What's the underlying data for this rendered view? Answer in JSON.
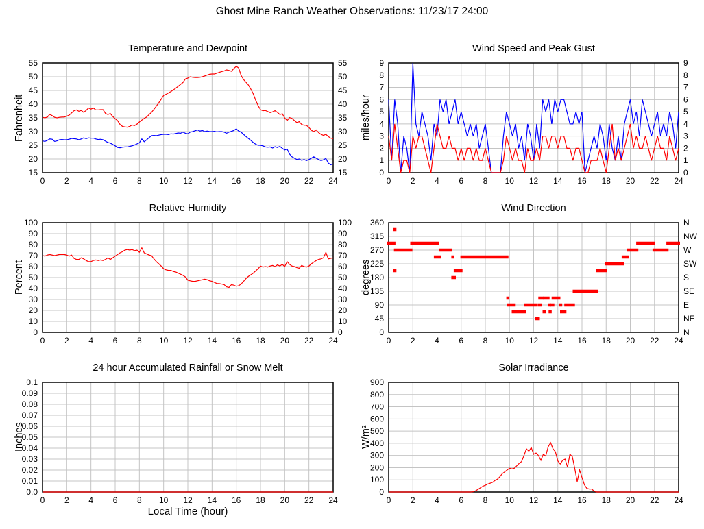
{
  "page_title": "Ghost Mine Ranch Weather Observations: 11/23/17 24:00",
  "colors": {
    "grid": "#c4c4c4",
    "border": "#000000",
    "red": "#ff0000",
    "blue": "#0000ff",
    "background": "#ffffff"
  },
  "chart_data": [
    {
      "id": "temperature-dewpoint",
      "type": "line",
      "title": "Temperature and Dewpoint",
      "ylabel": "Fahrenheit",
      "xlim": [
        0,
        24
      ],
      "ylim": [
        15,
        55
      ],
      "xticks": [
        0,
        2,
        4,
        6,
        8,
        10,
        12,
        14,
        16,
        18,
        20,
        22,
        24
      ],
      "yticks": [
        15,
        20,
        25,
        30,
        35,
        40,
        45,
        50,
        55
      ],
      "right": "mirror",
      "series": [
        {
          "name": "Temperature",
          "color": "#ff0000",
          "x0": 0,
          "step": 0.2,
          "y": [
            35.2,
            35.0,
            35.3,
            36.3,
            35.8,
            35.2,
            35.0,
            35.2,
            35.3,
            35.3,
            35.6,
            36.0,
            36.8,
            37.6,
            37.9,
            37.4,
            37.7,
            37.0,
            37.7,
            38.6,
            38.2,
            38.6,
            37.9,
            37.9,
            38.0,
            38.0,
            36.6,
            36.2,
            36.6,
            35.5,
            34.7,
            34.0,
            32.6,
            31.9,
            31.7,
            31.6,
            31.9,
            32.4,
            32.2,
            32.7,
            33.5,
            34.2,
            34.8,
            35.3,
            36.2,
            37.0,
            38.1,
            39.3,
            40.5,
            41.8,
            43.2,
            43.6,
            44.1,
            44.6,
            45.2,
            45.8,
            46.5,
            47.2,
            47.9,
            49.2,
            49.5,
            50.0,
            49.8,
            49.7,
            49.7,
            49.8,
            50.0,
            50.3,
            50.6,
            50.9,
            51.0,
            51.0,
            51.3,
            51.6,
            51.9,
            52.1,
            52.5,
            52.3,
            52.0,
            53.0,
            53.8,
            53.2,
            50.5,
            49.0,
            48.0,
            47.0,
            45.5,
            43.8,
            41.5,
            39.5,
            38.0,
            37.6,
            37.7,
            37.3,
            36.9,
            37.2,
            37.6,
            37.0,
            36.2,
            36.5,
            35.0,
            34.0,
            35.1,
            34.8,
            34.0,
            33.3,
            33.6,
            32.6,
            32.3,
            32.3,
            31.5,
            30.5,
            30.0,
            30.6,
            29.6,
            29.0,
            28.6,
            29.0,
            28.2,
            27.6,
            27.4
          ]
        },
        {
          "name": "Dewpoint",
          "color": "#0000ff",
          "x0": 0,
          "step": 0.2,
          "y": [
            26.6,
            26.4,
            26.8,
            27.3,
            27.2,
            26.4,
            26.6,
            27.0,
            27.1,
            27.0,
            27.0,
            27.2,
            27.5,
            27.4,
            27.3,
            27.0,
            27.3,
            27.7,
            27.4,
            27.7,
            27.6,
            27.6,
            27.3,
            27.1,
            27.2,
            27.0,
            26.5,
            26.0,
            25.8,
            25.3,
            24.8,
            24.2,
            24.1,
            24.3,
            24.4,
            24.4,
            24.6,
            24.8,
            25.1,
            25.5,
            25.9,
            27.3,
            26.3,
            27.0,
            27.8,
            28.5,
            28.6,
            28.5,
            28.7,
            28.9,
            29.0,
            29.0,
            28.9,
            29.2,
            29.1,
            29.3,
            29.5,
            29.4,
            29.8,
            29.4,
            29.2,
            29.8,
            30.0,
            30.3,
            30.6,
            30.2,
            30.4,
            30.0,
            30.2,
            30.0,
            30.0,
            30.1,
            29.9,
            30.0,
            30.0,
            29.8,
            29.4,
            29.8,
            30.1,
            30.4,
            31.0,
            30.2,
            29.8,
            29.0,
            28.2,
            27.5,
            26.8,
            26.0,
            25.4,
            25.0,
            25.0,
            24.8,
            24.4,
            24.3,
            24.4,
            24.0,
            24.5,
            24.2,
            24.6,
            23.9,
            23.3,
            23.6,
            21.8,
            20.8,
            20.3,
            19.8,
            20.0,
            19.5,
            19.8,
            19.4,
            19.8,
            20.3,
            20.8,
            20.3,
            19.8,
            19.4,
            19.7,
            20.2,
            18.5,
            17.9,
            18.2
          ]
        }
      ]
    },
    {
      "id": "wind-speed-gust",
      "type": "line",
      "title": "Wind Speed and Peak Gust",
      "ylabel": "miles/hour",
      "xlim": [
        0,
        24
      ],
      "ylim": [
        0,
        9
      ],
      "xticks": [
        0,
        2,
        4,
        6,
        8,
        10,
        12,
        14,
        16,
        18,
        20,
        22,
        24
      ],
      "yticks": [
        0,
        1,
        2,
        3,
        4,
        5,
        6,
        7,
        8,
        9
      ],
      "right": "mirror",
      "series": [
        {
          "name": "Peak Gust",
          "color": "#0000ff",
          "x0": 0,
          "step": 0.25,
          "y": [
            6,
            1,
            6,
            4,
            0,
            3,
            2,
            0,
            9,
            4,
            3,
            5,
            4,
            3,
            1,
            4,
            3,
            6,
            5,
            6,
            4,
            5,
            6,
            4,
            5,
            4,
            3,
            4,
            3,
            4,
            2,
            3,
            4,
            2,
            0,
            0,
            0,
            0,
            3,
            5,
            4,
            3,
            4,
            2,
            3,
            1,
            4,
            3,
            1,
            4,
            2,
            6,
            5,
            6,
            4,
            6,
            5,
            6,
            6,
            5,
            4,
            4,
            5,
            4,
            5,
            0,
            1,
            2,
            3,
            2,
            4,
            3,
            1,
            4,
            2,
            1,
            3,
            1,
            4,
            5,
            6,
            4,
            5,
            3,
            6,
            5,
            4,
            3,
            4,
            5,
            3,
            4,
            3,
            5,
            4,
            2,
            5
          ]
        },
        {
          "name": "Wind Speed",
          "color": "#ff0000",
          "x0": 0,
          "step": 0.25,
          "y": [
            3,
            1,
            4,
            2,
            0,
            1,
            1,
            0,
            3,
            2,
            3,
            3,
            2,
            1,
            0,
            2,
            4,
            3,
            2,
            2,
            3,
            2,
            2,
            1,
            2,
            1,
            2,
            2,
            1,
            2,
            1,
            1,
            2,
            1,
            0,
            0,
            0,
            0,
            1,
            3,
            2,
            1,
            2,
            1,
            1,
            0,
            2,
            1,
            1,
            2,
            1,
            3,
            3,
            2,
            3,
            3,
            2,
            3,
            3,
            2,
            2,
            1,
            2,
            2,
            1,
            0,
            0,
            1,
            1,
            1,
            2,
            1,
            0,
            2,
            4,
            1,
            2,
            1,
            2,
            3,
            4,
            2,
            3,
            2,
            2,
            3,
            2,
            1,
            2,
            3,
            2,
            2,
            1,
            3,
            2,
            1,
            2
          ]
        }
      ]
    },
    {
      "id": "relative-humidity",
      "type": "line",
      "title": "Relative Humidity",
      "ylabel": "Percent",
      "xlim": [
        0,
        24
      ],
      "ylim": [
        0,
        100
      ],
      "xticks": [
        0,
        2,
        4,
        6,
        8,
        10,
        12,
        14,
        16,
        18,
        20,
        22,
        24
      ],
      "yticks": [
        0,
        10,
        20,
        30,
        40,
        50,
        60,
        70,
        80,
        90,
        100
      ],
      "right": "mirror",
      "series": [
        {
          "name": "Relative Humidity",
          "color": "#ff0000",
          "x0": 0,
          "step": 0.2,
          "y": [
            70,
            69.5,
            70.5,
            71,
            70.5,
            70,
            70.5,
            71,
            71,
            71,
            70.5,
            69.5,
            70.5,
            67.5,
            66.5,
            66.5,
            68,
            67,
            65.5,
            64.5,
            64.5,
            65.5,
            66,
            65.5,
            66,
            65.5,
            66.5,
            68,
            66.5,
            68,
            69.5,
            71,
            72.5,
            73.5,
            75,
            75.5,
            75,
            75.5,
            74.5,
            75,
            73,
            77,
            72.5,
            71.5,
            70.5,
            70,
            67,
            64.5,
            62.5,
            60.5,
            58,
            57,
            56.5,
            56.5,
            55.5,
            55,
            54,
            53,
            52,
            50.5,
            47.5,
            47,
            46.5,
            46.5,
            47,
            47.5,
            48,
            48.5,
            48,
            47,
            46.5,
            45.5,
            44.5,
            44.5,
            44,
            43.5,
            41.5,
            41,
            43.5,
            43,
            42,
            42.5,
            44,
            46.5,
            49,
            51,
            52.5,
            54,
            56,
            58,
            60.5,
            59.5,
            60,
            59.5,
            60.5,
            61,
            60,
            61.5,
            60.5,
            62,
            60,
            64.5,
            62,
            60.5,
            60,
            59,
            58.5,
            61,
            60,
            59.5,
            60.5,
            62.5,
            64,
            65.5,
            66.5,
            67,
            68,
            73,
            67,
            67.5,
            68
          ]
        }
      ]
    },
    {
      "id": "wind-direction",
      "type": "scatter",
      "title": "Wind Direction",
      "ylabel": "degrees",
      "xlim": [
        0,
        24
      ],
      "ylim": [
        0,
        360
      ],
      "xticks": [
        0,
        2,
        4,
        6,
        8,
        10,
        12,
        14,
        16,
        18,
        20,
        22,
        24
      ],
      "yticks": [
        0,
        45,
        90,
        135,
        180,
        225,
        270,
        315,
        360
      ],
      "right": "labels",
      "right_labels": [
        "N",
        "NE",
        "E",
        "SE",
        "S",
        "SW",
        "W",
        "NW",
        "N"
      ],
      "series": [
        {
          "name": "Wind Direction",
          "color": "#ff0000",
          "segments": [
            [
              0.0,
              0.45,
              292.5
            ],
            [
              0.5,
              0.5,
              337.5
            ],
            [
              0.5,
              0.5,
              202.5
            ],
            [
              0.55,
              1.85,
              270
            ],
            [
              1.9,
              4.05,
              292.5
            ],
            [
              3.85,
              4.25,
              247.5
            ],
            [
              4.3,
              5.15,
              270
            ],
            [
              5.3,
              5.3,
              247.5
            ],
            [
              5.3,
              5.45,
              180
            ],
            [
              5.5,
              6.0,
              202.5
            ],
            [
              6.05,
              9.8,
              247.5
            ],
            [
              9.85,
              9.85,
              112.5
            ],
            [
              9.9,
              10.4,
              90
            ],
            [
              10.3,
              11.25,
              67.5
            ],
            [
              11.3,
              12.2,
              90
            ],
            [
              12.2,
              12.4,
              45
            ],
            [
              12.45,
              12.6,
              90
            ],
            [
              12.5,
              12.75,
              112.5
            ],
            [
              12.85,
              12.85,
              67.5
            ],
            [
              12.9,
              13.2,
              112.5
            ],
            [
              13.3,
              13.3,
              90
            ],
            [
              13.35,
              13.35,
              67.5
            ],
            [
              13.5,
              13.6,
              90
            ],
            [
              13.6,
              14.1,
              112.5
            ],
            [
              14.2,
              14.25,
              90
            ],
            [
              14.3,
              14.3,
              67.5
            ],
            [
              14.55,
              14.6,
              67.5
            ],
            [
              14.65,
              15.3,
              90
            ],
            [
              15.35,
              17.25,
              135
            ],
            [
              17.3,
              17.95,
              202.5
            ],
            [
              18.0,
              19.35,
              225
            ],
            [
              19.4,
              19.75,
              247.5
            ],
            [
              19.8,
              20.55,
              270
            ],
            [
              20.6,
              21.9,
              292.5
            ],
            [
              21.95,
              23.05,
              270
            ],
            [
              23.1,
              24.0,
              292.5
            ]
          ]
        }
      ]
    },
    {
      "id": "rainfall",
      "type": "line",
      "title": "24 hour Accumulated Rainfall or Snow Melt",
      "ylabel": "Inches",
      "xlabel": "Local Time (hour)",
      "xlim": [
        0,
        24
      ],
      "ylim": [
        0,
        0.1
      ],
      "xticks": [
        0,
        2,
        4,
        6,
        8,
        10,
        12,
        14,
        16,
        18,
        20,
        22,
        24
      ],
      "yticks": [
        0,
        0.01,
        0.02,
        0.03,
        0.04,
        0.05,
        0.06,
        0.07,
        0.08,
        0.09,
        0.1
      ],
      "ytick_labels": [
        "0.0",
        "0.01",
        "0.02",
        "0.03",
        "0.04",
        "0.05",
        "0.06",
        "0.07",
        "0.08",
        "0.09",
        "0.1"
      ],
      "right": null,
      "series": [
        {
          "name": "Accumulated Rainfall",
          "color": "#ff0000",
          "x0": 0,
          "step": 24,
          "y": [
            0,
            0
          ]
        }
      ]
    },
    {
      "id": "solar-irradiance",
      "type": "line",
      "title": "Solar Irradiance",
      "ylabel": "W/m²",
      "xlim": [
        0,
        24
      ],
      "ylim": [
        0,
        900
      ],
      "xticks": [
        0,
        2,
        4,
        6,
        8,
        10,
        12,
        14,
        16,
        18,
        20,
        22,
        24
      ],
      "yticks": [
        0,
        100,
        200,
        300,
        400,
        500,
        600,
        700,
        800,
        900
      ],
      "right": null,
      "series": [
        {
          "name": "Solar Irradiance",
          "color": "#ff0000",
          "x0": 0,
          "step": 0.2,
          "y": [
            0,
            0,
            0,
            0,
            0,
            0,
            0,
            0,
            0,
            0,
            0,
            0,
            0,
            0,
            0,
            0,
            0,
            0,
            0,
            0,
            0,
            0,
            0,
            0,
            0,
            0,
            0,
            0,
            0,
            0,
            0,
            0,
            0,
            0,
            0,
            2,
            10,
            22,
            35,
            48,
            55,
            65,
            72,
            80,
            95,
            105,
            125,
            150,
            165,
            180,
            195,
            190,
            195,
            215,
            235,
            250,
            300,
            355,
            335,
            365,
            310,
            320,
            300,
            260,
            310,
            295,
            370,
            405,
            355,
            330,
            255,
            230,
            260,
            270,
            205,
            310,
            290,
            195,
            85,
            180,
            120,
            60,
            30,
            25,
            25,
            8,
            0,
            0,
            0,
            0,
            0,
            0,
            0,
            0,
            0,
            0,
            0,
            0,
            0,
            0,
            0,
            0,
            0,
            0,
            0,
            0,
            0,
            0,
            0,
            0,
            0,
            0,
            0,
            0,
            0,
            0,
            0,
            0,
            0,
            0,
            0
          ]
        }
      ]
    }
  ]
}
